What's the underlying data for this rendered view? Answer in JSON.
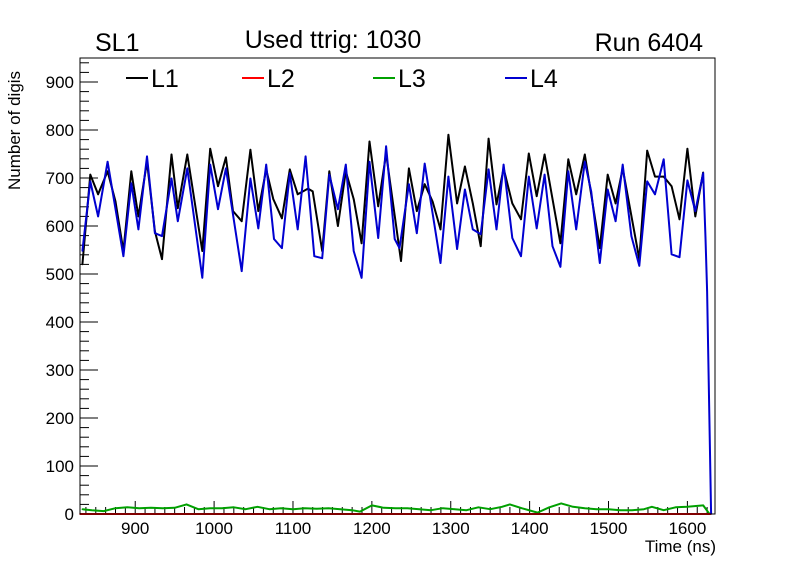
{
  "chart_data": {
    "type": "line",
    "title_left": "SL1",
    "title": "Used ttrig: 1030",
    "title_right": "Run 6404",
    "xlabel": "Time (ns)",
    "ylabel": "Number of digis",
    "xlim": [
      830,
      1635
    ],
    "ylim": [
      0,
      950
    ],
    "xticks": [
      900,
      1000,
      1100,
      1200,
      1300,
      1400,
      1500,
      1600
    ],
    "yticks": [
      0,
      100,
      200,
      300,
      400,
      500,
      600,
      700,
      800,
      900
    ],
    "grid": false,
    "legend_placement": "top",
    "series": [
      {
        "name": "L1",
        "color": "#000000",
        "x": [
          833,
          843,
          853,
          865,
          875,
          885,
          895,
          904,
          915,
          925,
          934,
          946,
          954,
          966,
          985,
          995,
          1005,
          1015,
          1024,
          1035,
          1046,
          1056,
          1066,
          1075,
          1086,
          1096,
          1106,
          1119,
          1125,
          1137,
          1146,
          1157,
          1167,
          1177,
          1187,
          1197,
          1208,
          1218,
          1237,
          1247,
          1257,
          1267,
          1277,
          1287,
          1297,
          1308,
          1318,
          1328,
          1338,
          1348,
          1358,
          1367,
          1378,
          1389,
          1399,
          1409,
          1419,
          1439,
          1449,
          1459,
          1470,
          1489,
          1499,
          1509,
          1518,
          1539,
          1549,
          1559,
          1570,
          1580,
          1590,
          1600,
          1610,
          1620
        ],
        "y": [
          520,
          707,
          666,
          714,
          651,
          548,
          714,
          620,
          734,
          589,
          531,
          749,
          637,
          749,
          548,
          761,
          683,
          743,
          631,
          610,
          759,
          631,
          718,
          656,
          616,
          718,
          666,
          678,
          672,
          548,
          714,
          600,
          714,
          656,
          564,
          776,
          641,
          751,
          527,
          720,
          631,
          687,
          651,
          593,
          790,
          647,
          724,
          647,
          558,
          782,
          645,
          720,
          647,
          614,
          751,
          662,
          749,
          564,
          739,
          666,
          749,
          554,
          707,
          647,
          720,
          531,
          757,
          703,
          703,
          683,
          614,
          761,
          620,
          712
        ]
      },
      {
        "name": "L2",
        "color": "#ff0000",
        "x": [
          830,
          1630
        ],
        "y": [
          0,
          0
        ]
      },
      {
        "name": "L3",
        "color": "#00a000",
        "x": [
          833,
          845,
          860,
          875,
          890,
          905,
          920,
          935,
          950,
          965,
          980,
          995,
          1010,
          1025,
          1040,
          1055,
          1070,
          1085,
          1100,
          1115,
          1130,
          1145,
          1160,
          1175,
          1185,
          1200,
          1215,
          1230,
          1245,
          1260,
          1275,
          1290,
          1305,
          1320,
          1335,
          1350,
          1365,
          1375,
          1390,
          1410,
          1425,
          1440,
          1455,
          1470,
          1485,
          1500,
          1515,
          1530,
          1545,
          1555,
          1570,
          1585,
          1600,
          1620,
          1628
        ],
        "y": [
          10,
          8,
          6,
          12,
          14,
          12,
          13,
          12,
          13,
          20,
          10,
          12,
          12,
          14,
          10,
          15,
          10,
          12,
          10,
          12,
          11,
          12,
          10,
          8,
          5,
          18,
          13,
          12,
          12,
          10,
          8,
          12,
          10,
          8,
          14,
          10,
          15,
          20,
          12,
          3,
          14,
          22,
          15,
          12,
          10,
          10,
          8,
          8,
          10,
          15,
          8,
          14,
          15,
          18,
          0
        ]
      },
      {
        "name": "L4",
        "color": "#0000d0",
        "x": [
          833,
          843,
          853,
          865,
          885,
          895,
          904,
          915,
          925,
          934,
          946,
          954,
          966,
          985,
          995,
          1005,
          1015,
          1035,
          1046,
          1056,
          1066,
          1076,
          1086,
          1096,
          1106,
          1116,
          1127,
          1137,
          1146,
          1157,
          1167,
          1177,
          1187,
          1197,
          1208,
          1218,
          1229,
          1235,
          1247,
          1257,
          1267,
          1287,
          1297,
          1308,
          1318,
          1328,
          1338,
          1348,
          1358,
          1367,
          1378,
          1389,
          1399,
          1409,
          1419,
          1429,
          1439,
          1449,
          1459,
          1470,
          1478,
          1489,
          1499,
          1509,
          1518,
          1529,
          1539,
          1549,
          1559,
          1570,
          1580,
          1590,
          1600,
          1610,
          1620,
          1623,
          1625,
          1630
        ],
        "y": [
          548,
          693,
          620,
          734,
          537,
          689,
          593,
          745,
          585,
          579,
          699,
          610,
          720,
          492,
          728,
          635,
          720,
          506,
          699,
          595,
          728,
          573,
          554,
          710,
          593,
          745,
          537,
          533,
          707,
          635,
          728,
          548,
          492,
          734,
          575,
          766,
          573,
          554,
          687,
          585,
          730,
          523,
          703,
          552,
          676,
          593,
          583,
          718,
          593,
          728,
          575,
          537,
          703,
          595,
          707,
          558,
          515,
          714,
          593,
          734,
          672,
          523,
          676,
          610,
          728,
          579,
          517,
          693,
          666,
          739,
          541,
          535,
          695,
          631,
          710,
          575,
          465,
          0
        ]
      }
    ]
  }
}
